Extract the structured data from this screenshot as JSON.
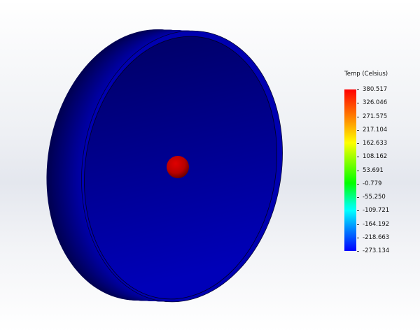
{
  "legend": {
    "title": "Temp (Celsius)",
    "labels": [
      "380.517",
      "326.046",
      "271.575",
      "217.104",
      "162.633",
      "108.162",
      "53.691",
      "-0.779",
      "-55.250",
      "-109.721",
      "-164.192",
      "-218.663",
      "-273.134"
    ],
    "max": 380.517,
    "min": -273.134,
    "colormap": [
      "#ff0000",
      "#ff8000",
      "#ffff00",
      "#00ff00",
      "#00ffff",
      "#0000ff"
    ]
  },
  "model": {
    "body_color": "#0000a8",
    "hot_spot_color": "#cc0000"
  }
}
